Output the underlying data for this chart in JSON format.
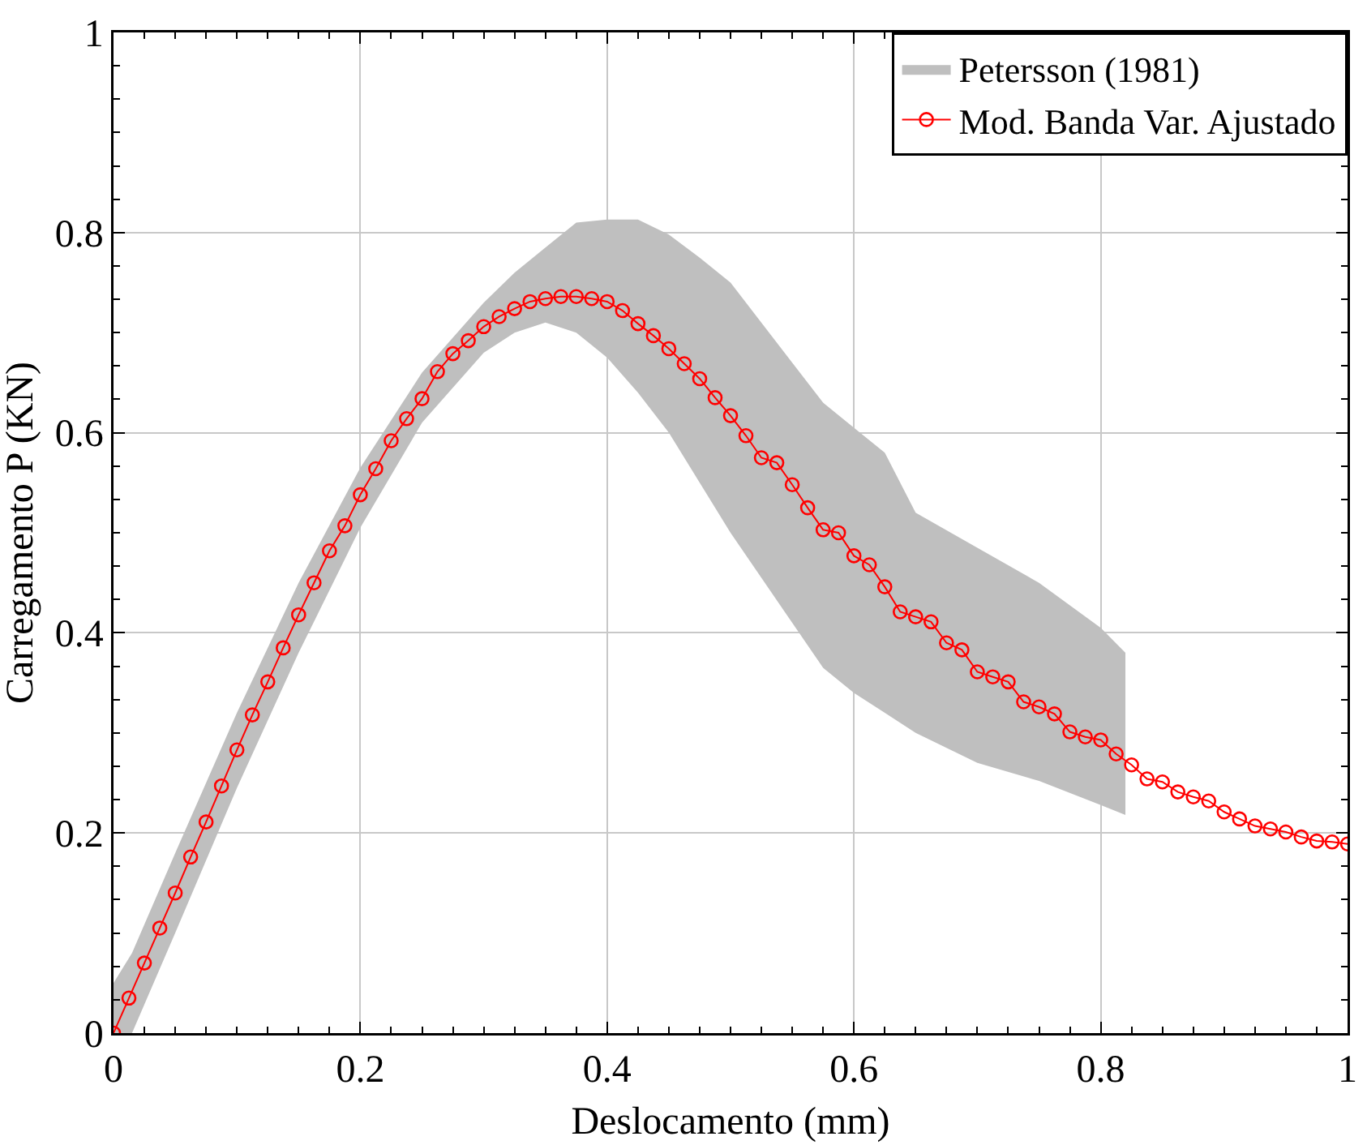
{
  "chart_data": {
    "type": "line",
    "xlabel": "Deslocamento (mm)",
    "ylabel": "Carregamento P (KN)",
    "xlim": [
      0,
      1
    ],
    "ylim": [
      0,
      1
    ],
    "xticks": [
      0,
      0.2,
      0.4,
      0.6,
      0.8,
      1
    ],
    "yticks": [
      0,
      0.2,
      0.4,
      0.6,
      0.8,
      1
    ],
    "grid": true,
    "legend": "top right",
    "series": [
      {
        "name": "Petersson (1981)",
        "type": "area",
        "color": "#bfbfbf",
        "x": [
          0,
          0.015,
          0.05,
          0.1,
          0.15,
          0.2,
          0.25,
          0.3,
          0.325,
          0.35,
          0.375,
          0.4,
          0.425,
          0.45,
          0.475,
          0.5,
          0.55,
          0.575,
          0.6,
          0.625,
          0.65,
          0.7,
          0.75,
          0.8,
          0.82
        ],
        "upper": [
          0.05,
          0.08,
          0.18,
          0.32,
          0.45,
          0.565,
          0.66,
          0.73,
          0.76,
          0.785,
          0.81,
          0.813,
          0.813,
          0.798,
          0.775,
          0.75,
          0.67,
          0.63,
          0.605,
          0.58,
          0.52,
          0.485,
          0.45,
          0.405,
          0.38
        ],
        "lower": [
          0,
          0,
          0.1,
          0.245,
          0.38,
          0.505,
          0.61,
          0.68,
          0.7,
          0.71,
          0.7,
          0.675,
          0.64,
          0.6,
          0.55,
          0.5,
          0.41,
          0.365,
          0.34,
          0.32,
          0.3,
          0.27,
          0.252,
          0.228,
          0.218
        ],
        "values": [
          null,
          null,
          null,
          null,
          null,
          null,
          null,
          null,
          null,
          null,
          null,
          null,
          null,
          null,
          null,
          null,
          null,
          null,
          null,
          null,
          null,
          null,
          null,
          null,
          null
        ]
      },
      {
        "name": "Mod. Banda Var. Ajustado",
        "color": "#ff0000",
        "marker": "circle",
        "line_style": "solid",
        "x": [
          0,
          0.0125,
          0.025,
          0.0375,
          0.05,
          0.0625,
          0.075,
          0.0875,
          0.1,
          0.1125,
          0.125,
          0.1375,
          0.15,
          0.1625,
          0.175,
          0.1875,
          0.2,
          0.2125,
          0.225,
          0.2375,
          0.25,
          0.2625,
          0.275,
          0.2875,
          0.3,
          0.3125,
          0.325,
          0.3375,
          0.35,
          0.3625,
          0.375,
          0.3875,
          0.4,
          0.4125,
          0.425,
          0.4375,
          0.45,
          0.4625,
          0.475,
          0.4875,
          0.5,
          0.5125,
          0.525,
          0.5375,
          0.55,
          0.5625,
          0.575,
          0.5875,
          0.6,
          0.6125,
          0.625,
          0.6375,
          0.65,
          0.6625,
          0.675,
          0.6875,
          0.7,
          0.7125,
          0.725,
          0.7375,
          0.75,
          0.7625,
          0.775,
          0.7875,
          0.8,
          0.8125,
          0.825,
          0.8375,
          0.85,
          0.8625,
          0.875,
          0.8875,
          0.9,
          0.9125,
          0.925,
          0.9375,
          0.95,
          0.9625,
          0.975,
          0.9875,
          1
        ],
        "values": [
          0,
          0.035,
          0.07,
          0.105,
          0.14,
          0.176,
          0.211,
          0.247,
          0.283,
          0.318,
          0.351,
          0.385,
          0.418,
          0.45,
          0.482,
          0.507,
          0.538,
          0.564,
          0.592,
          0.614,
          0.634,
          0.661,
          0.679,
          0.692,
          0.706,
          0.716,
          0.724,
          0.731,
          0.734,
          0.736,
          0.736,
          0.734,
          0.731,
          0.722,
          0.709,
          0.697,
          0.684,
          0.669,
          0.654,
          0.635,
          0.617,
          0.597,
          0.575,
          0.57,
          0.548,
          0.525,
          0.503,
          0.5,
          0.477,
          0.468,
          0.446,
          0.421,
          0.416,
          0.411,
          0.39,
          0.383,
          0.361,
          0.356,
          0.351,
          0.331,
          0.326,
          0.319,
          0.301,
          0.296,
          0.293,
          0.279,
          0.268,
          0.254,
          0.251,
          0.241,
          0.236,
          0.232,
          0.221,
          0.214,
          0.207,
          0.204,
          0.201,
          0.196,
          0.192,
          0.191,
          0.189
        ]
      }
    ]
  }
}
